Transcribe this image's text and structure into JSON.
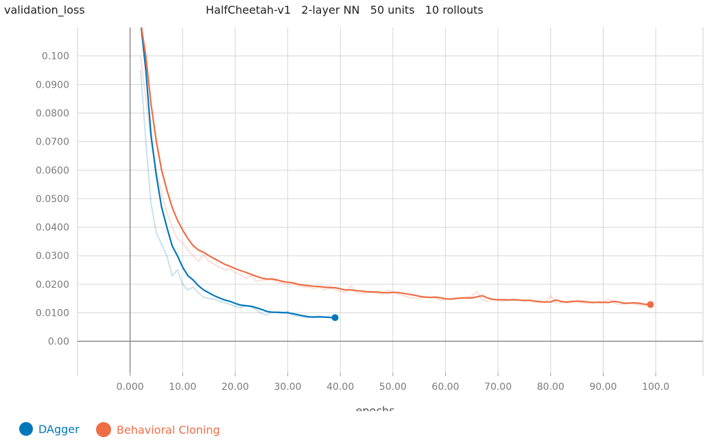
{
  "header": {
    "metric": "validation_loss",
    "title": "HalfCheetah-v1   2-layer NN   50 units   10 rollouts"
  },
  "chart_data": {
    "type": "line",
    "title": "HalfCheetah-v1   2-layer NN   50 units   10 rollouts",
    "ylabel": "validation_loss",
    "xlabel": "epochs",
    "xlim": [
      -10,
      109
    ],
    "ylim": [
      -0.011,
      0.11
    ],
    "x_ticks": [
      "0.000",
      "10.00",
      "20.00",
      "30.00",
      "40.00",
      "50.00",
      "60.00",
      "70.00",
      "80.00",
      "90.00",
      "100.0"
    ],
    "x_tick_values": [
      0,
      10,
      20,
      30,
      40,
      50,
      60,
      70,
      80,
      90,
      100
    ],
    "y_ticks": [
      "0.00",
      "0.0100",
      "0.0200",
      "0.0300",
      "0.0400",
      "0.0500",
      "0.0600",
      "0.0700",
      "0.0800",
      "0.0900",
      "0.100"
    ],
    "y_tick_values": [
      0,
      0.01,
      0.02,
      0.03,
      0.04,
      0.05,
      0.06,
      0.07,
      0.08,
      0.09,
      0.1
    ],
    "grid": true,
    "legend_position": "bottom-left",
    "series": [
      {
        "name": "DAgger",
        "color": "#0077bb",
        "x": [
          2,
          3,
          4,
          5,
          6,
          7,
          8,
          9,
          10,
          11,
          12,
          13,
          14,
          15,
          16,
          17,
          18,
          19,
          20,
          21,
          22,
          23,
          24,
          25,
          26,
          27,
          28,
          29,
          30,
          31,
          32,
          33,
          34,
          35,
          36,
          37,
          38,
          39
        ],
        "smoothed": [
          0.112,
          0.095,
          0.072,
          0.058,
          0.047,
          0.04,
          0.0335,
          0.03,
          0.026,
          0.023,
          0.0215,
          0.0195,
          0.018,
          0.017,
          0.016,
          0.0152,
          0.0145,
          0.014,
          0.0133,
          0.0127,
          0.0125,
          0.0123,
          0.0118,
          0.0112,
          0.0105,
          0.0102,
          0.0102,
          0.0101,
          0.01,
          0.0097,
          0.0093,
          0.0089,
          0.0086,
          0.0085,
          0.0086,
          0.0085,
          0.0084,
          0.0083
        ],
        "raw": [
          0.095,
          0.07,
          0.048,
          0.038,
          0.034,
          0.03,
          0.023,
          0.025,
          0.02,
          0.018,
          0.019,
          0.017,
          0.0155,
          0.015,
          0.0148,
          0.014,
          0.0135,
          0.013,
          0.0122,
          0.0118,
          0.0125,
          0.012,
          0.011,
          0.0098,
          0.0092,
          0.0103,
          0.01,
          0.0098,
          0.0105,
          0.009,
          0.0088,
          0.0086,
          0.0084,
          0.0087,
          0.0087,
          0.0085,
          0.0083,
          0.0082
        ]
      },
      {
        "name": "Behavioral Cloning",
        "color": "#ee6d45",
        "x": [
          2,
          3,
          4,
          5,
          6,
          7,
          8,
          9,
          10,
          11,
          12,
          13,
          14,
          15,
          16,
          17,
          18,
          19,
          20,
          21,
          22,
          23,
          24,
          25,
          26,
          27,
          28,
          29,
          30,
          31,
          32,
          33,
          34,
          35,
          36,
          37,
          38,
          39,
          40,
          41,
          42,
          43,
          44,
          45,
          46,
          47,
          48,
          49,
          50,
          51,
          52,
          53,
          54,
          55,
          56,
          57,
          58,
          59,
          60,
          61,
          62,
          63,
          64,
          65,
          66,
          67,
          68,
          69,
          70,
          71,
          72,
          73,
          74,
          75,
          76,
          77,
          78,
          79,
          80,
          81,
          82,
          83,
          84,
          85,
          86,
          87,
          88,
          89,
          90,
          91,
          92,
          93,
          94,
          95,
          96,
          97,
          98,
          99
        ],
        "smoothed": [
          0.112,
          0.1,
          0.083,
          0.07,
          0.06,
          0.053,
          0.047,
          0.0425,
          0.039,
          0.036,
          0.0335,
          0.032,
          0.0312,
          0.03,
          0.029,
          0.028,
          0.027,
          0.0263,
          0.0255,
          0.0248,
          0.0242,
          0.0235,
          0.0228,
          0.0222,
          0.0218,
          0.0218,
          0.0215,
          0.021,
          0.0207,
          0.0205,
          0.02,
          0.0197,
          0.0195,
          0.0193,
          0.0192,
          0.019,
          0.0188,
          0.0188,
          0.0184,
          0.018,
          0.018,
          0.0178,
          0.0176,
          0.0174,
          0.0173,
          0.0173,
          0.0171,
          0.017,
          0.0172,
          0.0171,
          0.0168,
          0.0165,
          0.0162,
          0.0158,
          0.0155,
          0.0154,
          0.0155,
          0.0153,
          0.0149,
          0.0148,
          0.015,
          0.0152,
          0.0152,
          0.0152,
          0.0156,
          0.016,
          0.0152,
          0.0147,
          0.0146,
          0.0146,
          0.0145,
          0.0146,
          0.0145,
          0.0143,
          0.0144,
          0.0141,
          0.0139,
          0.0138,
          0.0138,
          0.0145,
          0.014,
          0.0137,
          0.0139,
          0.0141,
          0.014,
          0.0138,
          0.0136,
          0.0137,
          0.0137,
          0.0136,
          0.014,
          0.0138,
          0.0133,
          0.0134,
          0.0135,
          0.0133,
          0.013,
          0.0129,
          0.0126
        ],
        "raw": [
          0.1,
          0.085,
          0.07,
          0.06,
          0.052,
          0.045,
          0.04,
          0.036,
          0.0345,
          0.032,
          0.03,
          0.028,
          0.0305,
          0.028,
          0.027,
          0.026,
          0.025,
          0.0255,
          0.024,
          0.0235,
          0.022,
          0.023,
          0.021,
          0.0215,
          0.0215,
          0.0225,
          0.0205,
          0.0205,
          0.02,
          0.02,
          0.0195,
          0.019,
          0.019,
          0.0185,
          0.019,
          0.018,
          0.0195,
          0.018,
          0.0175,
          0.0172,
          0.0195,
          0.0172,
          0.0168,
          0.017,
          0.0172,
          0.0168,
          0.0165,
          0.018,
          0.0172,
          0.0165,
          0.016,
          0.0155,
          0.0152,
          0.015,
          0.0158,
          0.0155,
          0.0152,
          0.0145,
          0.0148,
          0.015,
          0.0152,
          0.015,
          0.0155,
          0.0158,
          0.0175,
          0.0145,
          0.014,
          0.0148,
          0.0142,
          0.014,
          0.0146,
          0.0144,
          0.0143,
          0.0145,
          0.0142,
          0.0138,
          0.0136,
          0.0135,
          0.016,
          0.0135,
          0.0135,
          0.014,
          0.0142,
          0.0138,
          0.0135,
          0.0133,
          0.0138,
          0.0136,
          0.0134,
          0.0148,
          0.0135,
          0.013,
          0.0132,
          0.0136,
          0.013,
          0.0128,
          0.0126,
          0.0124
        ]
      }
    ]
  },
  "legend": {
    "items": [
      {
        "label": "DAgger",
        "color": "#0077bb"
      },
      {
        "label": "Behavioral Cloning",
        "color": "#ee6d45"
      }
    ]
  }
}
